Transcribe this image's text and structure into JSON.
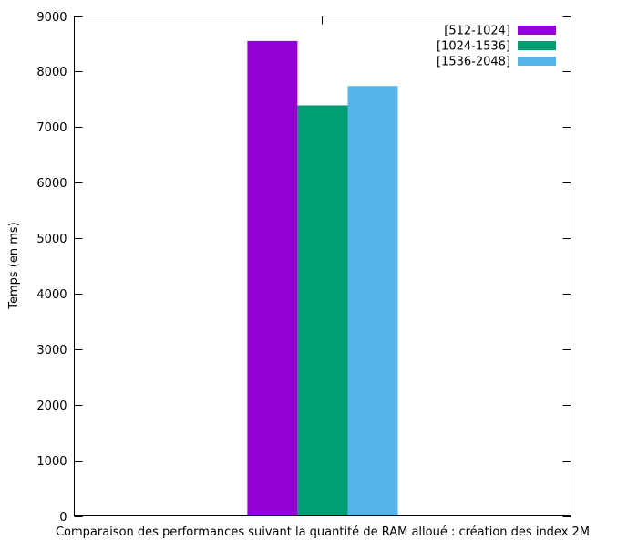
{
  "chart_data": {
    "type": "bar",
    "title": "",
    "xlabel": "Comparaison des performances suivant la quantité de RAM alloué : création des index 2M",
    "ylabel": "Temps (en ms)",
    "ylim": [
      0,
      9000
    ],
    "yticks": [
      0,
      1000,
      2000,
      3000,
      4000,
      5000,
      6000,
      7000,
      8000,
      9000
    ],
    "grid": false,
    "legend_position": "top-right",
    "categories": [
      ""
    ],
    "series": [
      {
        "name": "[512-1024]",
        "color": "#9400d3",
        "values": [
          8550
        ]
      },
      {
        "name": "[1024-1536]",
        "color": "#009e73",
        "values": [
          7390
        ]
      },
      {
        "name": "[1536-2048]",
        "color": "#56b4e9",
        "values": [
          7740
        ]
      }
    ]
  }
}
